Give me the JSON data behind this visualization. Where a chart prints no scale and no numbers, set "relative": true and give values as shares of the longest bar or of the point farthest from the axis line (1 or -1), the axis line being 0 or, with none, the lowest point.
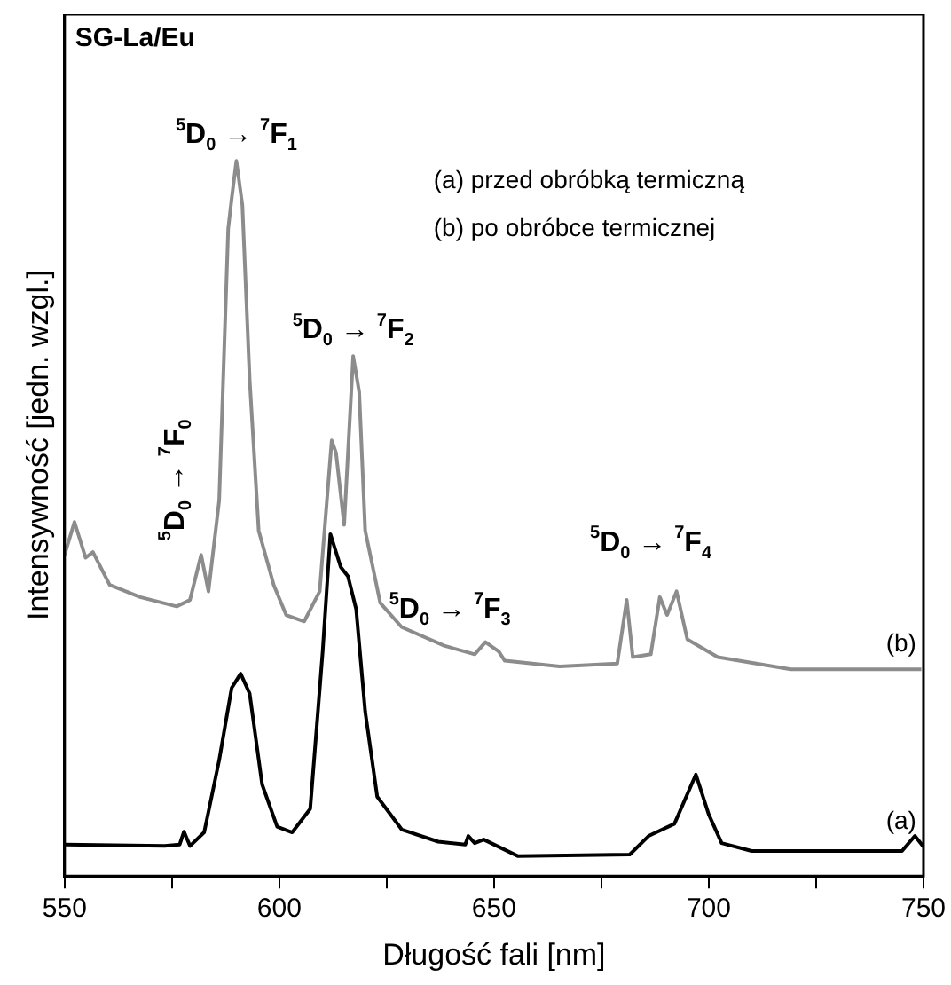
{
  "chart_data": {
    "type": "line",
    "title": "SG-La/Eu",
    "xlabel": "Długość fali [nm]",
    "ylabel": "Intensywność [jedn. wzgl.]",
    "relative": true,
    "grid": false,
    "legend": false,
    "marker": "none",
    "line_style": "solid",
    "tick_labels": "x",
    "xlim": [
      550,
      750
    ],
    "xticks": [
      550,
      {
        "value": 575,
        "label": null
      },
      600,
      {
        "value": 625,
        "label": null
      },
      650,
      {
        "value": 675,
        "label": null
      },
      700,
      {
        "value": 725,
        "label": null
      },
      750
    ],
    "annotations": [
      {
        "text": "$^{5}$D$_{0}$ → $^{7}$F$_{1}$",
        "x": 590,
        "y": 1
      },
      {
        "text": "$^{5}$D$_{0}$ → $^{7}$F$_{0}$",
        "x": 581.8,
        "y": 0.449
      },
      {
        "text": "$^{5}$D$_{0}$ → $^{7}$F$_{2}$",
        "x": 617.2,
        "y": 0.727
      },
      {
        "text": "$^{5}$D$_{0}$ → $^{7}$F$_{3}$",
        "x": 648,
        "y": 0.327
      },
      {
        "text": "$^{5}$D$_{0}$ → $^{7}$F$_{4}$",
        "x": 686.5,
        "y": 0.39
      },
      "(a) przed obróbką termiczną",
      "(b) po obróbce termicznej"
    ],
    "series": [
      {
        "name": "(b)",
        "color": "#8c8c8c",
        "x": [
          550,
          552.3,
          554.9,
          556.6,
          560.5,
          567.6,
          576.1,
          579.2,
          581.8,
          583.5,
          586,
          588.1,
          588.9,
          590,
          591.4,
          593.1,
          595.2,
          598.7,
          601.6,
          605.8,
          609.4,
          612.2,
          613.2,
          615.1,
          617.2,
          618.6,
          620,
          623.5,
          628.5,
          638.4,
          645.5,
          648,
          651.1,
          652.5,
          665.3,
          678.7,
          680.9,
          682.3,
          686.5,
          688.6,
          690.3,
          692.5,
          695,
          702.1,
          719.1,
          749.5
        ],
        "values": [
          0.449,
          0.495,
          0.445,
          0.453,
          0.407,
          0.39,
          0.377,
          0.386,
          0.449,
          0.398,
          0.525,
          0.905,
          0.947,
          1,
          0.938,
          0.694,
          0.483,
          0.407,
          0.365,
          0.356,
          0.398,
          0.609,
          0.592,
          0.491,
          0.727,
          0.677,
          0.483,
          0.382,
          0.348,
          0.322,
          0.31,
          0.327,
          0.314,
          0.301,
          0.293,
          0.297,
          0.386,
          0.306,
          0.31,
          0.39,
          0.365,
          0.398,
          0.331,
          0.306,
          0.289,
          0.289
        ]
      },
      {
        "name": "(a)",
        "color": "#000000",
        "x": [
          550,
          573.3,
          576.8,
          577.8,
          579.2,
          582.5,
          586,
          588.9,
          591,
          593.1,
          596,
          599.5,
          603,
          607.2,
          610.1,
          611.9,
          614.3,
          616,
          617.9,
          620,
          622.8,
          628.5,
          637,
          643.3,
          644,
          645.5,
          647.6,
          655.5,
          681.6,
          686,
          692,
          697,
          700,
          703,
          710,
          745,
          748,
          750
        ],
        "values": [
          0.044,
          0.042,
          0.044,
          0.062,
          0.042,
          0.061,
          0.162,
          0.263,
          0.283,
          0.255,
          0.128,
          0.069,
          0.061,
          0.094,
          0.314,
          0.478,
          0.432,
          0.419,
          0.373,
          0.23,
          0.111,
          0.065,
          0.048,
          0.044,
          0.056,
          0.046,
          0.051,
          0.028,
          0.03,
          0.056,
          0.073,
          0.142,
          0.086,
          0.046,
          0.035,
          0.035,
          0.056,
          0.041
        ]
      }
    ]
  }
}
